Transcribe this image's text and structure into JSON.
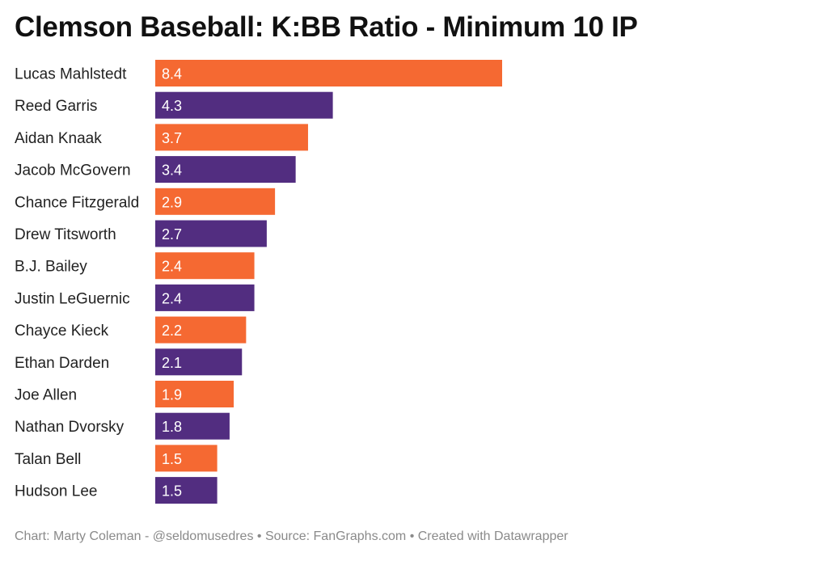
{
  "title": "Clemson Baseball: K:BB Ratio - Minimum 10 IP",
  "footer": "Chart: Marty Coleman - @seldomusedres • Source: FanGraphs.com • Created with Datawrapper",
  "colors": {
    "orange": "#F56932",
    "purple": "#522D80"
  },
  "chart_data": {
    "type": "bar",
    "orientation": "horizontal",
    "title": "Clemson Baseball: K:BB Ratio - Minimum 10 IP",
    "xlabel": "",
    "ylabel": "",
    "xlim": [
      0,
      8.4
    ],
    "grid": false,
    "legend": "none",
    "categories": [
      "Lucas Mahlstedt",
      "Reed Garris",
      "Aidan Knaak",
      "Jacob McGovern",
      "Chance Fitzgerald",
      "Drew Titsworth",
      "B.J. Bailey",
      "Justin LeGuernic",
      "Chayce Kieck",
      "Ethan Darden",
      "Joe Allen",
      "Nathan Dvorsky",
      "Talan Bell",
      "Hudson Lee"
    ],
    "values": [
      8.4,
      4.3,
      3.7,
      3.4,
      2.9,
      2.7,
      2.4,
      2.4,
      2.2,
      2.1,
      1.9,
      1.8,
      1.5,
      1.5
    ],
    "value_labels": [
      "8.4",
      "4.3",
      "3.7",
      "3.4",
      "2.9",
      "2.7",
      "2.4",
      "2.4",
      "2.2",
      "2.1",
      "1.9",
      "1.8",
      "1.5",
      "1.5"
    ],
    "bar_colors": [
      "#F56932",
      "#522D80",
      "#F56932",
      "#522D80",
      "#F56932",
      "#522D80",
      "#F56932",
      "#522D80",
      "#F56932",
      "#522D80",
      "#F56932",
      "#522D80",
      "#F56932",
      "#522D80"
    ]
  }
}
